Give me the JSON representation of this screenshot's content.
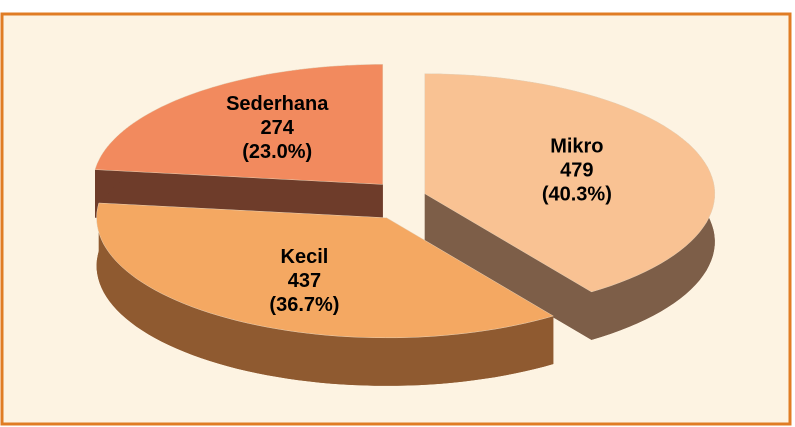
{
  "chart_data": {
    "type": "pie3d",
    "categories": [
      "Mikro",
      "Kecil",
      "Sederhana"
    ],
    "values": [
      479,
      437,
      274
    ],
    "percent_labels": [
      "(40.3%)",
      "(36.7%)",
      "(23.0%)"
    ],
    "colors": [
      "#f9c293",
      "#f4a862",
      "#f28a5e"
    ],
    "side_colors": [
      "#7d5e48",
      "#8f5a30",
      "#6e3c2a"
    ]
  }
}
